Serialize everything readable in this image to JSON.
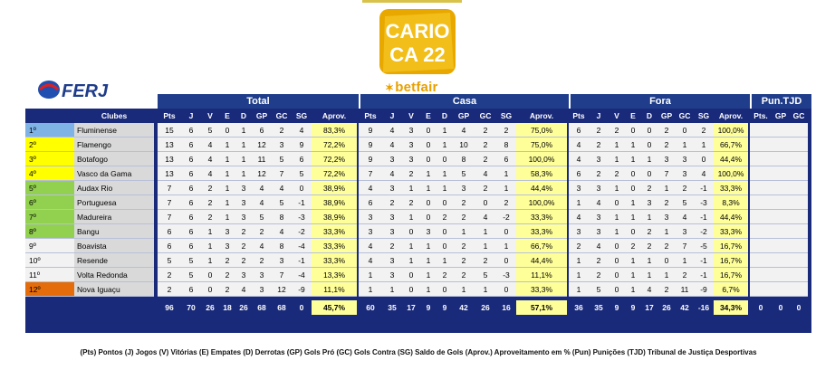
{
  "logo": {
    "text_top": "CARIO",
    "text_bottom": "CA 22"
  },
  "brand": {
    "name": "betfair",
    "ferj": "FERJ"
  },
  "groups": {
    "total": "Total",
    "casa": "Casa",
    "fora": "Fora",
    "pun": "Pun.TJD"
  },
  "headers": {
    "clubes": "Clubes",
    "stats": [
      "Pts",
      "J",
      "V",
      "E",
      "D",
      "GP",
      "GC",
      "SG",
      "Aprov."
    ],
    "pun": [
      "Pts.",
      "GP",
      "GC"
    ]
  },
  "rows": [
    {
      "pos": "1º",
      "club": "Fluminense",
      "pos_color": "#7fb2e5",
      "total": [
        "15",
        "6",
        "5",
        "0",
        "1",
        "6",
        "2",
        "4",
        "83,3%"
      ],
      "casa": [
        "9",
        "4",
        "3",
        "0",
        "1",
        "4",
        "2",
        "2",
        "75,0%"
      ],
      "fora": [
        "6",
        "2",
        "2",
        "0",
        "0",
        "2",
        "0",
        "2",
        "100,0%"
      ]
    },
    {
      "pos": "2º",
      "club": "Flamengo",
      "pos_color": "#ffff00",
      "total": [
        "13",
        "6",
        "4",
        "1",
        "1",
        "12",
        "3",
        "9",
        "72,2%"
      ],
      "casa": [
        "9",
        "4",
        "3",
        "0",
        "1",
        "10",
        "2",
        "8",
        "75,0%"
      ],
      "fora": [
        "4",
        "2",
        "1",
        "1",
        "0",
        "2",
        "1",
        "1",
        "66,7%"
      ]
    },
    {
      "pos": "3º",
      "club": "Botafogo",
      "pos_color": "#ffff00",
      "total": [
        "13",
        "6",
        "4",
        "1",
        "1",
        "11",
        "5",
        "6",
        "72,2%"
      ],
      "casa": [
        "9",
        "3",
        "3",
        "0",
        "0",
        "8",
        "2",
        "6",
        "100,0%"
      ],
      "fora": [
        "4",
        "3",
        "1",
        "1",
        "1",
        "3",
        "3",
        "0",
        "44,4%"
      ]
    },
    {
      "pos": "4º",
      "club": "Vasco da Gama",
      "pos_color": "#ffff00",
      "total": [
        "13",
        "6",
        "4",
        "1",
        "1",
        "12",
        "7",
        "5",
        "72,2%"
      ],
      "casa": [
        "7",
        "4",
        "2",
        "1",
        "1",
        "5",
        "4",
        "1",
        "58,3%"
      ],
      "fora": [
        "6",
        "2",
        "2",
        "0",
        "0",
        "7",
        "3",
        "4",
        "100,0%"
      ]
    },
    {
      "pos": "5º",
      "club": "Audax Rio",
      "pos_color": "#92d050",
      "total": [
        "7",
        "6",
        "2",
        "1",
        "3",
        "4",
        "4",
        "0",
        "38,9%"
      ],
      "casa": [
        "4",
        "3",
        "1",
        "1",
        "1",
        "3",
        "2",
        "1",
        "44,4%"
      ],
      "fora": [
        "3",
        "3",
        "1",
        "0",
        "2",
        "1",
        "2",
        "-1",
        "33,3%"
      ]
    },
    {
      "pos": "6º",
      "club": "Portuguesa",
      "pos_color": "#92d050",
      "total": [
        "7",
        "6",
        "2",
        "1",
        "3",
        "4",
        "5",
        "-1",
        "38,9%"
      ],
      "casa": [
        "6",
        "2",
        "2",
        "0",
        "0",
        "2",
        "0",
        "2",
        "100,0%"
      ],
      "fora": [
        "1",
        "4",
        "0",
        "1",
        "3",
        "2",
        "5",
        "-3",
        "8,3%"
      ]
    },
    {
      "pos": "7º",
      "club": "Madureira",
      "pos_color": "#92d050",
      "total": [
        "7",
        "6",
        "2",
        "1",
        "3",
        "5",
        "8",
        "-3",
        "38,9%"
      ],
      "casa": [
        "3",
        "3",
        "1",
        "0",
        "2",
        "2",
        "4",
        "-2",
        "33,3%"
      ],
      "fora": [
        "4",
        "3",
        "1",
        "1",
        "1",
        "3",
        "4",
        "-1",
        "44,4%"
      ]
    },
    {
      "pos": "8º",
      "club": "Bangu",
      "pos_color": "#92d050",
      "total": [
        "6",
        "6",
        "1",
        "3",
        "2",
        "2",
        "4",
        "-2",
        "33,3%"
      ],
      "casa": [
        "3",
        "3",
        "0",
        "3",
        "0",
        "1",
        "1",
        "0",
        "33,3%"
      ],
      "fora": [
        "3",
        "3",
        "1",
        "0",
        "2",
        "1",
        "3",
        "-2",
        "33,3%"
      ]
    },
    {
      "pos": "9º",
      "club": "Boavista",
      "pos_color": "#f2f2f2",
      "total": [
        "6",
        "6",
        "1",
        "3",
        "2",
        "4",
        "8",
        "-4",
        "33,3%"
      ],
      "casa": [
        "4",
        "2",
        "1",
        "1",
        "0",
        "2",
        "1",
        "1",
        "66,7%"
      ],
      "fora": [
        "2",
        "4",
        "0",
        "2",
        "2",
        "2",
        "7",
        "-5",
        "16,7%"
      ]
    },
    {
      "pos": "10º",
      "club": "Resende",
      "pos_color": "#f2f2f2",
      "total": [
        "5",
        "5",
        "1",
        "2",
        "2",
        "2",
        "3",
        "-1",
        "33,3%"
      ],
      "casa": [
        "4",
        "3",
        "1",
        "1",
        "1",
        "2",
        "2",
        "0",
        "44,4%"
      ],
      "fora": [
        "1",
        "2",
        "0",
        "1",
        "1",
        "0",
        "1",
        "-1",
        "16,7%"
      ]
    },
    {
      "pos": "11º",
      "club": "Volta Redonda",
      "pos_color": "#f2f2f2",
      "total": [
        "2",
        "5",
        "0",
        "2",
        "3",
        "3",
        "7",
        "-4",
        "13,3%"
      ],
      "casa": [
        "1",
        "3",
        "0",
        "1",
        "2",
        "2",
        "5",
        "-3",
        "11,1%"
      ],
      "fora": [
        "1",
        "2",
        "0",
        "1",
        "1",
        "1",
        "2",
        "-1",
        "16,7%"
      ]
    },
    {
      "pos": "12º",
      "club": "Nova Iguaçu",
      "pos_color": "#e46c0a",
      "total": [
        "2",
        "6",
        "0",
        "2",
        "4",
        "3",
        "12",
        "-9",
        "11,1%"
      ],
      "casa": [
        "1",
        "1",
        "0",
        "1",
        "0",
        "1",
        "1",
        "0",
        "33,3%"
      ],
      "fora": [
        "1",
        "5",
        "0",
        "1",
        "4",
        "2",
        "11",
        "-9",
        "6,7%"
      ]
    }
  ],
  "totals": {
    "total": [
      "96",
      "70",
      "26",
      "18",
      "26",
      "68",
      "68",
      "0",
      "45,7%"
    ],
    "casa": [
      "60",
      "35",
      "17",
      "9",
      "9",
      "42",
      "26",
      "16",
      "57,1%"
    ],
    "fora": [
      "36",
      "35",
      "9",
      "9",
      "17",
      "26",
      "42",
      "-16",
      "34,3%"
    ],
    "pun": [
      "0",
      "0",
      "0"
    ]
  },
  "legend": "(Pts) Pontos (J) Jogos (V) Vitórias (E) Empates (D) Derrotas (GP) Gols Pró (GC) Gols Contra (SG) Saldo de Gols (Aprov.) Aproveitamento em % (Pun) Punições (TJD) Tribunal de Justiça Desportivas"
}
